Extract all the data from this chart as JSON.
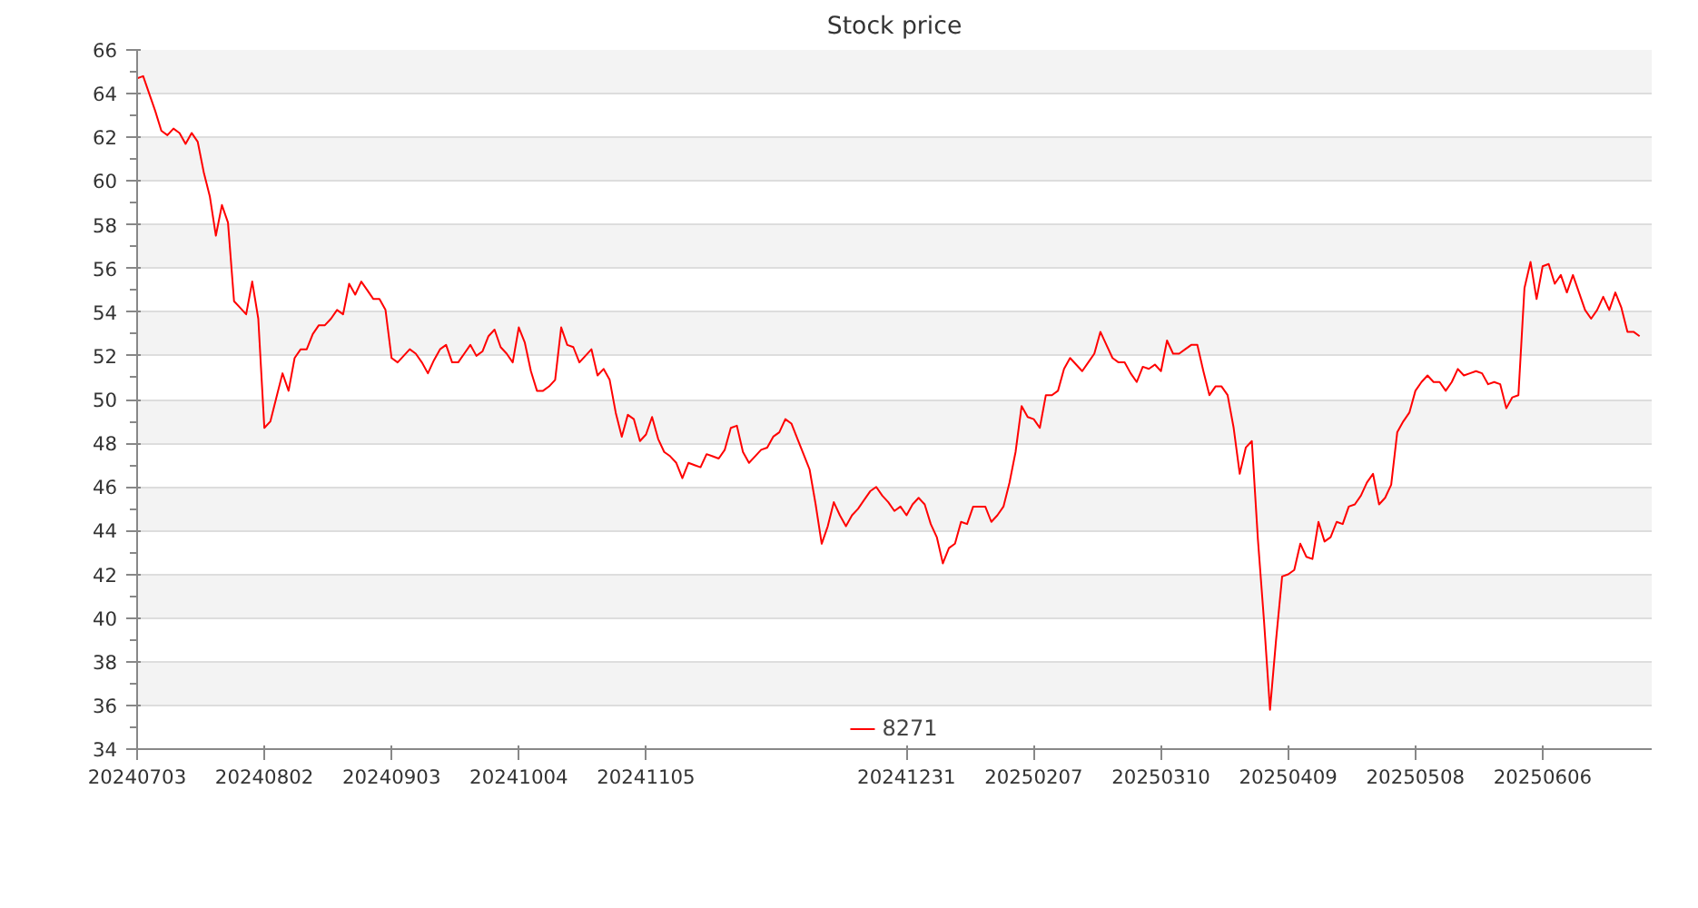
{
  "chart_data": {
    "type": "line",
    "title": "Stock price",
    "categories": [
      "20240703",
      null,
      null,
      null,
      null,
      null,
      null,
      null,
      null,
      null,
      null,
      null,
      null,
      null,
      null,
      null,
      null,
      null,
      null,
      null,
      null,
      "20240802",
      null,
      null,
      null,
      null,
      null,
      null,
      null,
      null,
      null,
      null,
      null,
      null,
      null,
      null,
      null,
      null,
      null,
      null,
      null,
      null,
      "20240903",
      null,
      null,
      null,
      null,
      null,
      null,
      null,
      null,
      null,
      null,
      null,
      null,
      null,
      null,
      null,
      null,
      null,
      null,
      null,
      null,
      "20241004",
      null,
      null,
      null,
      null,
      null,
      null,
      null,
      null,
      null,
      null,
      null,
      null,
      null,
      null,
      null,
      null,
      null,
      null,
      null,
      null,
      "20241105",
      null,
      null,
      null,
      null,
      null,
      null,
      null,
      null,
      null,
      null,
      null,
      null,
      null,
      null,
      null,
      null,
      null,
      null,
      null,
      null,
      null,
      null,
      null,
      null,
      null,
      null,
      null,
      null,
      null,
      null,
      null,
      null,
      null,
      null,
      null,
      null,
      null,
      null,
      null,
      null,
      null,
      null,
      "20241231",
      null,
      null,
      null,
      null,
      null,
      null,
      null,
      null,
      null,
      null,
      null,
      null,
      null,
      null,
      null,
      null,
      null,
      null,
      null,
      null,
      "20250207",
      null,
      null,
      null,
      null,
      null,
      null,
      null,
      null,
      null,
      null,
      null,
      null,
      null,
      null,
      null,
      null,
      null,
      null,
      null,
      null,
      "20250310",
      null,
      null,
      null,
      null,
      null,
      null,
      null,
      null,
      null,
      null,
      null,
      null,
      null,
      null,
      null,
      null,
      null,
      null,
      null,
      null,
      "20250409",
      null,
      null,
      null,
      null,
      null,
      null,
      null,
      null,
      null,
      null,
      null,
      null,
      null,
      null,
      null,
      null,
      null,
      null,
      null,
      null,
      "20250508",
      null,
      null,
      null,
      null,
      null,
      null,
      null,
      null,
      null,
      null,
      null,
      null,
      null,
      null,
      null,
      null,
      null,
      null,
      null,
      null,
      "20250606",
      null,
      null,
      null,
      null,
      null,
      null,
      null,
      null,
      null,
      null,
      null,
      null,
      null,
      null,
      null,
      null
    ],
    "series": [
      {
        "name": "8271",
        "color": "#ff0000",
        "values": [
          64.7,
          64.8,
          64.0,
          63.2,
          62.3,
          62.1,
          62.4,
          62.2,
          61.7,
          62.2,
          61.8,
          60.4,
          59.3,
          57.5,
          58.9,
          58.1,
          54.5,
          54.2,
          53.9,
          55.4,
          53.7,
          48.7,
          49.0,
          50.1,
          51.2,
          50.4,
          51.9,
          52.3,
          52.3,
          53.0,
          53.4,
          53.4,
          53.7,
          54.1,
          53.9,
          55.3,
          54.8,
          55.4,
          55.0,
          54.6,
          54.6,
          54.1,
          51.9,
          51.7,
          52.0,
          52.3,
          52.1,
          51.7,
          51.2,
          51.8,
          52.3,
          52.5,
          51.7,
          51.7,
          52.1,
          52.5,
          52.0,
          52.2,
          52.9,
          53.2,
          52.4,
          52.1,
          51.7,
          53.3,
          52.6,
          51.3,
          50.4,
          50.4,
          50.6,
          50.9,
          53.3,
          52.5,
          52.4,
          51.7,
          52.0,
          52.3,
          51.1,
          51.4,
          50.9,
          49.4,
          48.3,
          49.3,
          49.1,
          48.1,
          48.4,
          49.2,
          48.2,
          47.6,
          47.4,
          47.1,
          46.4,
          47.1,
          47.0,
          46.9,
          47.5,
          47.4,
          47.3,
          47.7,
          48.7,
          48.8,
          47.6,
          47.1,
          47.4,
          47.7,
          47.8,
          48.3,
          48.5,
          49.1,
          48.9,
          48.2,
          47.5,
          46.8,
          45.2,
          43.4,
          44.2,
          45.3,
          44.7,
          44.2,
          44.7,
          45.0,
          45.4,
          45.8,
          46.0,
          45.6,
          45.3,
          44.9,
          45.1,
          44.7,
          45.2,
          45.5,
          45.2,
          44.3,
          43.7,
          42.5,
          43.2,
          43.4,
          44.4,
          44.3,
          45.1,
          45.1,
          45.1,
          44.4,
          44.7,
          45.1,
          46.2,
          47.6,
          49.7,
          49.2,
          49.1,
          48.7,
          50.2,
          50.2,
          50.4,
          51.4,
          51.9,
          51.6,
          51.3,
          51.7,
          52.1,
          53.1,
          52.5,
          51.9,
          51.7,
          51.7,
          51.2,
          50.8,
          51.5,
          51.4,
          51.6,
          51.3,
          52.7,
          52.1,
          52.1,
          52.3,
          52.5,
          52.5,
          51.3,
          50.2,
          50.6,
          50.6,
          50.2,
          48.7,
          46.6,
          47.8,
          48.1,
          43.6,
          39.9,
          35.8,
          39.0,
          41.9,
          42.0,
          42.2,
          43.4,
          42.8,
          42.7,
          44.4,
          43.5,
          43.7,
          44.4,
          44.3,
          45.1,
          45.2,
          45.6,
          46.2,
          46.6,
          45.2,
          45.5,
          46.1,
          48.5,
          49.0,
          49.4,
          50.4,
          50.8,
          51.1,
          50.8,
          50.8,
          50.4,
          50.8,
          51.4,
          51.1,
          51.2,
          51.3,
          51.2,
          50.7,
          50.8,
          50.7,
          49.6,
          50.1,
          50.2,
          55.1,
          56.3,
          54.6,
          56.1,
          56.2,
          55.3,
          55.7,
          54.9,
          55.7,
          54.9,
          54.1,
          53.7,
          54.1,
          54.7,
          54.1,
          54.9,
          54.2,
          53.1,
          53.1,
          52.9
        ]
      }
    ],
    "ylim": [
      34,
      66
    ],
    "yticks": [
      34,
      36,
      38,
      40,
      42,
      44,
      46,
      48,
      50,
      52,
      54,
      56,
      58,
      60,
      62,
      64,
      66
    ],
    "grid": "y",
    "legend": "bottom",
    "line_style": "solid"
  }
}
